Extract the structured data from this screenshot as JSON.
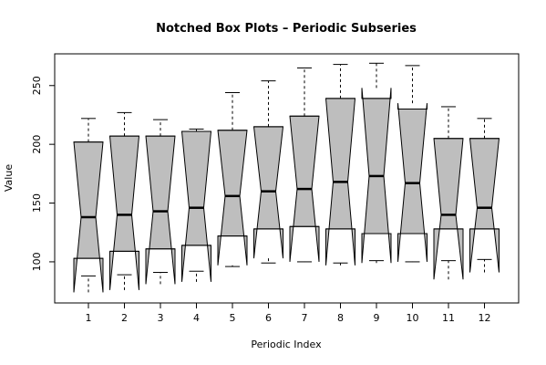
{
  "chart_data": {
    "type": "boxplot",
    "notched": true,
    "title": "Notched Box Plots – Periodic Subseries",
    "xlabel": "Periodic Index",
    "ylabel": "Value",
    "categories": [
      "1",
      "2",
      "3",
      "4",
      "5",
      "6",
      "7",
      "8",
      "9",
      "10",
      "11",
      "12"
    ],
    "y_ticks": [
      100,
      150,
      200,
      250
    ],
    "ylim": [
      65,
      277
    ],
    "box_fill": "#bebebe",
    "boxes": [
      {
        "min": 88,
        "q1": 103,
        "median": 138,
        "q3": 202,
        "max": 222,
        "notch_lo": 74,
        "notch_hi": 202
      },
      {
        "min": 89,
        "q1": 109,
        "median": 140,
        "q3": 207,
        "max": 227,
        "notch_lo": 76,
        "notch_hi": 207
      },
      {
        "min": 91,
        "q1": 111,
        "median": 143,
        "q3": 207,
        "max": 221,
        "notch_lo": 81,
        "notch_hi": 207
      },
      {
        "min": 92,
        "q1": 114,
        "median": 146,
        "q3": 211,
        "max": 213,
        "notch_lo": 83,
        "notch_hi": 211
      },
      {
        "min": 96,
        "q1": 122,
        "median": 156,
        "q3": 212,
        "max": 244,
        "notch_lo": 97,
        "notch_hi": 212
      },
      {
        "min": 99,
        "q1": 128,
        "median": 160,
        "q3": 215,
        "max": 254,
        "notch_lo": 103,
        "notch_hi": 215
      },
      {
        "min": 100,
        "q1": 130,
        "median": 162,
        "q3": 224,
        "max": 265,
        "notch_lo": 100,
        "notch_hi": 224
      },
      {
        "min": 99,
        "q1": 128,
        "median": 168,
        "q3": 239,
        "max": 268,
        "notch_lo": 97,
        "notch_hi": 239
      },
      {
        "min": 101,
        "q1": 124,
        "median": 173,
        "q3": 239,
        "max": 269,
        "notch_lo": 99,
        "notch_hi": 248
      },
      {
        "min": 100,
        "q1": 124,
        "median": 167,
        "q3": 230,
        "max": 267,
        "notch_lo": 100,
        "notch_hi": 235
      },
      {
        "min": 101,
        "q1": 128,
        "median": 140,
        "q3": 205,
        "max": 232,
        "notch_lo": 85,
        "notch_hi": 205
      },
      {
        "min": 102,
        "q1": 128,
        "median": 146,
        "q3": 205,
        "max": 222,
        "notch_lo": 91,
        "notch_hi": 205
      }
    ]
  }
}
